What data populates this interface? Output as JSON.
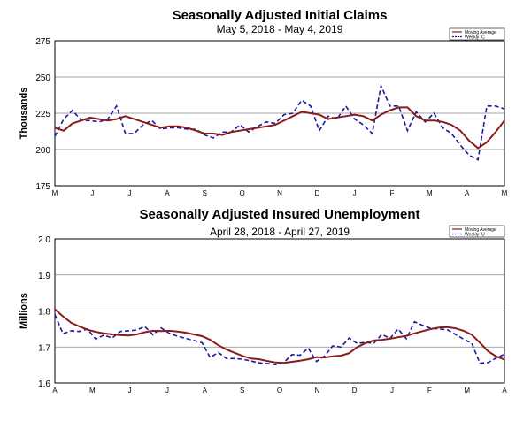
{
  "chart_data": [
    {
      "type": "line",
      "title": "Seasonally Adjusted Initial Claims",
      "subtitle": "May 5, 2018 - May 4, 2019",
      "xlabel": "",
      "ylabel": "Thousands",
      "ylim": [
        175,
        275
      ],
      "yticks": [
        "175",
        "200",
        "225",
        "250",
        "275"
      ],
      "grid": true,
      "legend_position": "top-right",
      "x_tick_labels": [
        "M",
        "J",
        "J",
        "A",
        "S",
        "O",
        "N",
        "D",
        "J",
        "F",
        "M",
        "A",
        "M"
      ],
      "series": [
        {
          "name": "Moving Average",
          "color": "#8b1a1a",
          "style": "solid",
          "values": [
            215,
            213,
            218,
            220,
            222,
            221,
            220,
            221,
            223,
            221,
            219,
            217,
            215,
            216,
            216,
            215,
            213,
            211,
            211,
            210,
            212,
            213,
            214,
            215,
            216,
            217,
            220,
            223,
            226,
            225,
            224,
            221,
            222,
            223,
            224,
            223,
            220,
            224,
            227,
            229,
            229,
            223,
            220,
            220,
            219,
            217,
            213,
            206,
            201,
            205,
            212,
            220
          ]
        },
        {
          "name": "Weekly IC",
          "color": "#1a1aa0",
          "style": "dashed",
          "values": [
            209,
            221,
            227,
            220,
            220,
            219,
            221,
            230,
            211,
            211,
            217,
            220,
            214,
            215,
            215,
            214,
            214,
            210,
            208,
            212,
            212,
            217,
            212,
            216,
            219,
            218,
            224,
            225,
            234,
            230,
            213,
            223,
            221,
            230,
            221,
            217,
            211,
            244,
            230,
            230,
            213,
            226,
            219,
            225,
            215,
            211,
            203,
            196,
            193,
            230,
            230,
            228
          ]
        }
      ]
    },
    {
      "type": "line",
      "title": "Seasonally Adjusted Insured Unemployment",
      "subtitle": "April 28, 2018 - April 27, 2019",
      "xlabel": "",
      "ylabel": "Millions",
      "ylim": [
        1.6,
        2.0
      ],
      "yticks": [
        "1.6",
        "1.7",
        "1.8",
        "1.9",
        "2.0"
      ],
      "grid": true,
      "legend_position": "top-right",
      "x_tick_labels": [
        "A",
        "M",
        "J",
        "J",
        "A",
        "S",
        "O",
        "N",
        "D",
        "J",
        "F",
        "M",
        "A"
      ],
      "series": [
        {
          "name": "Moving Average",
          "color": "#8b1a1a",
          "style": "solid",
          "values": [
            1.805,
            1.785,
            1.767,
            1.757,
            1.748,
            1.742,
            1.738,
            1.735,
            1.733,
            1.732,
            1.735,
            1.741,
            1.745,
            1.744,
            1.745,
            1.743,
            1.74,
            1.735,
            1.73,
            1.72,
            1.705,
            1.693,
            1.684,
            1.675,
            1.668,
            1.666,
            1.661,
            1.657,
            1.656,
            1.659,
            1.662,
            1.666,
            1.672,
            1.671,
            1.674,
            1.676,
            1.683,
            1.7,
            1.711,
            1.718,
            1.72,
            1.723,
            1.727,
            1.731,
            1.738,
            1.744,
            1.75,
            1.754,
            1.755,
            1.752,
            1.745,
            1.734,
            1.712,
            1.688,
            1.674,
            1.665
          ]
        },
        {
          "name": "Weekly IU",
          "color": "#1a1aa0",
          "style": "dashed",
          "values": [
            1.79,
            1.737,
            1.745,
            1.743,
            1.75,
            1.722,
            1.733,
            1.725,
            1.743,
            1.745,
            1.747,
            1.757,
            1.734,
            1.753,
            1.738,
            1.73,
            1.724,
            1.718,
            1.712,
            1.671,
            1.685,
            1.668,
            1.668,
            1.666,
            1.661,
            1.656,
            1.654,
            1.651,
            1.657,
            1.679,
            1.677,
            1.697,
            1.66,
            1.675,
            1.703,
            1.7,
            1.725,
            1.71,
            1.713,
            1.71,
            1.735,
            1.724,
            1.75,
            1.723,
            1.77,
            1.76,
            1.752,
            1.75,
            1.748,
            1.735,
            1.722,
            1.71,
            1.655,
            1.657,
            1.67,
            1.68
          ]
        }
      ]
    }
  ]
}
